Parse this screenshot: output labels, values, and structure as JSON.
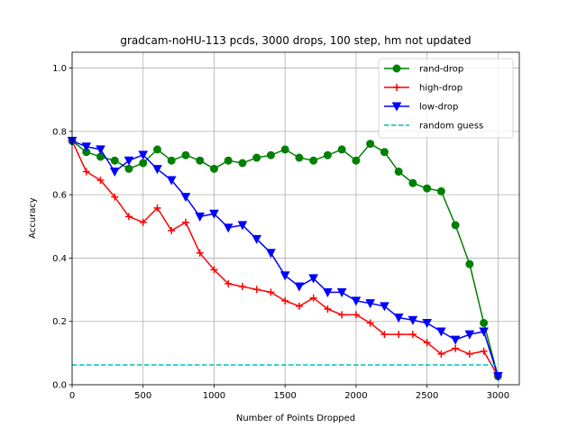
{
  "chart_data": {
    "type": "line",
    "title": "gradcam-noHU-113 pcds, 3000 drops, 100 step, hm not updated",
    "xlabel": "Number of Points Dropped",
    "ylabel": "Accuracy",
    "xlim": [
      0,
      3150
    ],
    "ylim": [
      0,
      1.05
    ],
    "xticks": [
      0,
      500,
      1000,
      1500,
      2000,
      2500,
      3000
    ],
    "xtick_labels": [
      "0",
      "500",
      "1000",
      "1500",
      "2000",
      "2500",
      "3000"
    ],
    "yticks": [
      0.0,
      0.2,
      0.4,
      0.6,
      0.8,
      1.0
    ],
    "ytick_labels": [
      "0.0",
      "0.2",
      "0.4",
      "0.6",
      "0.8",
      "1.0"
    ],
    "grid": true,
    "legend_position": "top-right",
    "x": [
      0,
      100,
      200,
      300,
      400,
      500,
      600,
      700,
      800,
      900,
      1000,
      1100,
      1200,
      1300,
      1400,
      1500,
      1600,
      1700,
      1800,
      1900,
      2000,
      2100,
      2200,
      2300,
      2400,
      2500,
      2600,
      2700,
      2800,
      2900,
      3000
    ],
    "series": [
      {
        "name": "rand-drop",
        "color": "#008000",
        "marker": "circle",
        "values": [
          0.77,
          0.735,
          0.72,
          0.708,
          0.682,
          0.7,
          0.743,
          0.708,
          0.725,
          0.708,
          0.682,
          0.708,
          0.7,
          0.717,
          0.725,
          0.743,
          0.717,
          0.708,
          0.725,
          0.743,
          0.708,
          0.761,
          0.735,
          0.673,
          0.637,
          0.62,
          0.611,
          0.504,
          0.381,
          0.195,
          0.027
        ]
      },
      {
        "name": "high-drop",
        "color": "#ff0000",
        "marker": "plus",
        "values": [
          0.77,
          0.673,
          0.646,
          0.593,
          0.531,
          0.513,
          0.558,
          0.487,
          0.513,
          0.416,
          0.363,
          0.319,
          0.31,
          0.301,
          0.292,
          0.265,
          0.248,
          0.274,
          0.239,
          0.221,
          0.221,
          0.195,
          0.159,
          0.159,
          0.159,
          0.133,
          0.097,
          0.115,
          0.097,
          0.106,
          0.027
        ]
      },
      {
        "name": "low-drop",
        "color": "#0000ff",
        "marker": "triangle-down",
        "values": [
          0.77,
          0.752,
          0.743,
          0.673,
          0.708,
          0.726,
          0.681,
          0.646,
          0.593,
          0.531,
          0.54,
          0.496,
          0.504,
          0.46,
          0.416,
          0.345,
          0.31,
          0.336,
          0.292,
          0.292,
          0.265,
          0.257,
          0.248,
          0.212,
          0.204,
          0.195,
          0.168,
          0.142,
          0.159,
          0.168,
          0.027
        ]
      },
      {
        "name": "random guess",
        "color": "#00bfbf",
        "marker": "none",
        "dashed": true,
        "constant": 0.0625,
        "x_range": [
          0,
          3000
        ]
      }
    ]
  }
}
